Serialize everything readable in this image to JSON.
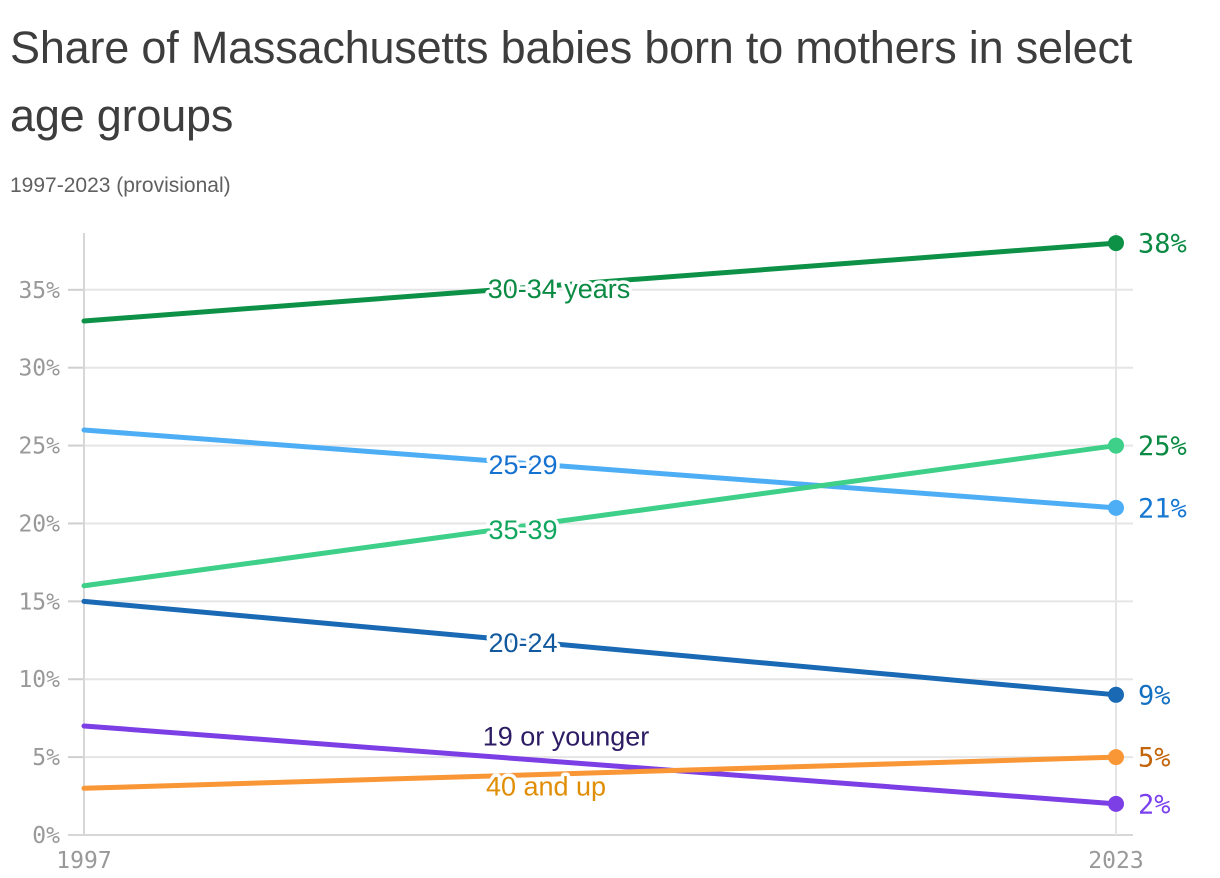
{
  "header": {
    "title": "Share of Massachusetts babies born to mothers in select age groups",
    "subtitle": "1997-2023 (provisional)"
  },
  "chart_data": {
    "type": "line",
    "x": [
      1997,
      2023
    ],
    "x_tick_labels": [
      "1997",
      "2023"
    ],
    "y_ticks": [
      0,
      5,
      10,
      15,
      20,
      25,
      30,
      35
    ],
    "y_tick_suffix": "%",
    "ylim": [
      0,
      38.6
    ],
    "grid": true,
    "legend_position": "inline-labels",
    "series": [
      {
        "name": "30-34 years",
        "values": [
          33,
          38
        ],
        "end_label": "38%",
        "line_color": "#0d9147",
        "label_color": "#0a8a43",
        "value_color": "#0a8a43"
      },
      {
        "name": "25-29",
        "values": [
          26,
          21
        ],
        "end_label": "21%",
        "line_color": "#4daef5",
        "label_color": "#1672d0",
        "value_color": "#1778d2"
      },
      {
        "name": "35-39",
        "values": [
          16,
          25
        ],
        "end_label": "25%",
        "line_color": "#3ecf89",
        "label_color": "#10a65e",
        "value_color": "#0a8a43"
      },
      {
        "name": "20-24",
        "values": [
          15,
          9
        ],
        "end_label": "9%",
        "line_color": "#1a69b4",
        "label_color": "#11589c",
        "value_color": "#1470c0"
      },
      {
        "name": "19 or younger",
        "values": [
          7,
          2
        ],
        "end_label": "2%",
        "line_color": "#7c3ee5",
        "label_color": "#2d1b63",
        "value_color": "#7a41ee"
      },
      {
        "name": "40 and up",
        "values": [
          3,
          5
        ],
        "end_label": "5%",
        "line_color": "#f99636",
        "label_color": "#df8e06",
        "value_color": "#c2640a"
      }
    ]
  }
}
